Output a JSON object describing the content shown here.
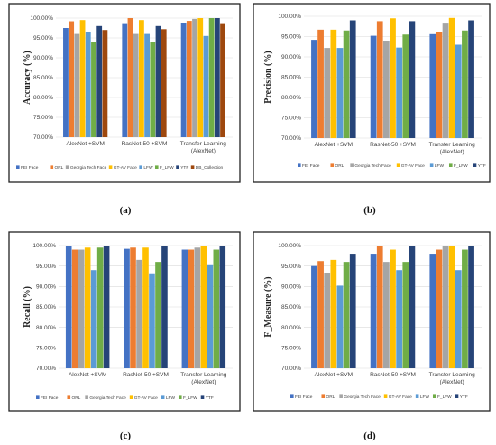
{
  "colors": {
    "FEI Face": "#4472c4",
    "ORL": "#ed7d31",
    "Georgia Tech Face": "#a5a5a5",
    "GT-AV Face": "#ffc000",
    "LFW": "#5b9bd5",
    "F_LFW": "#70ad47",
    "YTF": "#264478",
    "DB_Collection": "#9e480e"
  },
  "chart_data": [
    {
      "type": "bar",
      "panel_label": "(a)",
      "ylabel": "Accuracy (%)",
      "ylim": [
        70,
        100
      ],
      "yticks": [
        "70.00%",
        "75.00%",
        "80.00%",
        "85.00%",
        "90.00%",
        "95.00%",
        "100.00%"
      ],
      "categories": [
        [
          "AlexNet +SVM"
        ],
        [
          "RasNet-50 +SVM"
        ],
        [
          "Transfer Learning",
          "(AlexNet)"
        ]
      ],
      "legend_position": "bottom",
      "series": [
        {
          "name": "FEI Face",
          "values": [
            97.5,
            98.5,
            98.7
          ]
        },
        {
          "name": "ORL",
          "values": [
            99.2,
            100,
            99.3
          ]
        },
        {
          "name": "Georgia Tech Face",
          "values": [
            96.0,
            96.0,
            99.8
          ]
        },
        {
          "name": "GT-AV Face",
          "values": [
            99.5,
            99.5,
            100
          ]
        },
        {
          "name": "LFW",
          "values": [
            96.5,
            96.0,
            95.5
          ]
        },
        {
          "name": "F_LFW",
          "values": [
            94.0,
            94.0,
            100
          ]
        },
        {
          "name": "YTF",
          "values": [
            98.0,
            98.0,
            100
          ]
        },
        {
          "name": "DB_Collection",
          "values": [
            97.0,
            97.2,
            98.5
          ]
        }
      ]
    },
    {
      "type": "bar",
      "panel_label": "(b)",
      "ylabel": "Precision (%)",
      "ylim": [
        70,
        100
      ],
      "yticks": [
        "70.00%",
        "75.00%",
        "80.00%",
        "85.00%",
        "90.00%",
        "95.00%",
        "100.00%"
      ],
      "categories": [
        [
          "AlexNet +SVM"
        ],
        [
          "RasNet-50 +SVM"
        ],
        [
          "Transfer Learning",
          "(AlexNet)"
        ]
      ],
      "legend_position": "bottom",
      "series": [
        {
          "name": "FEI Face",
          "values": [
            94.2,
            95.2,
            95.6
          ]
        },
        {
          "name": "ORL",
          "values": [
            96.7,
            98.8,
            96.0
          ]
        },
        {
          "name": "Georgia Tech Face",
          "values": [
            92.2,
            94.0,
            98.2
          ]
        },
        {
          "name": "GT-AV Face",
          "values": [
            96.7,
            99.5,
            99.6
          ]
        },
        {
          "name": "LFW",
          "values": [
            92.2,
            92.3,
            93.0
          ]
        },
        {
          "name": "F_LFW",
          "values": [
            96.5,
            95.5,
            96.5
          ]
        },
        {
          "name": "YTF",
          "values": [
            99.0,
            98.8,
            99.0
          ]
        }
      ]
    },
    {
      "type": "bar",
      "panel_label": "(c)",
      "ylabel": "Recall (%)",
      "ylim": [
        70,
        100
      ],
      "yticks": [
        "70.00%",
        "75.00%",
        "80.00%",
        "85.00%",
        "90.00%",
        "95.00%",
        "100.00%"
      ],
      "categories": [
        [
          "AlexNet +SVM"
        ],
        [
          "RasNet-50 +SVM"
        ],
        [
          "Transfer Learning",
          "(AlexNet)"
        ]
      ],
      "legend_position": "bottom",
      "series": [
        {
          "name": "FEI Face",
          "values": [
            100,
            99.2,
            99.0
          ]
        },
        {
          "name": "ORL",
          "values": [
            99.0,
            99.5,
            99.0
          ]
        },
        {
          "name": "Georgia Tech Face",
          "values": [
            99.0,
            96.5,
            99.5
          ]
        },
        {
          "name": "GT-AV Face",
          "values": [
            99.5,
            99.5,
            100
          ]
        },
        {
          "name": "LFW",
          "values": [
            94.0,
            93.0,
            95.2
          ]
        },
        {
          "name": "F_LFW",
          "values": [
            99.5,
            96.0,
            99.0
          ]
        },
        {
          "name": "YTF",
          "values": [
            100,
            100,
            100
          ]
        }
      ]
    },
    {
      "type": "bar",
      "panel_label": "(d)",
      "ylabel": "F_Measure (%)",
      "ylim": [
        70,
        100
      ],
      "yticks": [
        "70.00%",
        "75.00%",
        "80.00%",
        "85.00%",
        "90.00%",
        "95.00%",
        "100.00%"
      ],
      "categories": [
        [
          "AlexNet +SVM"
        ],
        [
          "RasNet-50 +SVM"
        ],
        [
          "Transfer Learning",
          "(AlexNet)"
        ]
      ],
      "legend_position": "bottom",
      "series": [
        {
          "name": "FEI Face",
          "values": [
            95.0,
            98.0,
            98.0
          ]
        },
        {
          "name": "ORL",
          "values": [
            96.2,
            100,
            99.0
          ]
        },
        {
          "name": "Georgia Tech Face",
          "values": [
            93.2,
            96.0,
            100
          ]
        },
        {
          "name": "GT-AV Face",
          "values": [
            96.5,
            99.0,
            100
          ]
        },
        {
          "name": "LFW",
          "values": [
            90.2,
            94.0,
            94.0
          ]
        },
        {
          "name": "F_LFW",
          "values": [
            96.0,
            96.0,
            99.0
          ]
        },
        {
          "name": "YTF",
          "values": [
            98.0,
            100,
            100
          ]
        }
      ]
    }
  ]
}
